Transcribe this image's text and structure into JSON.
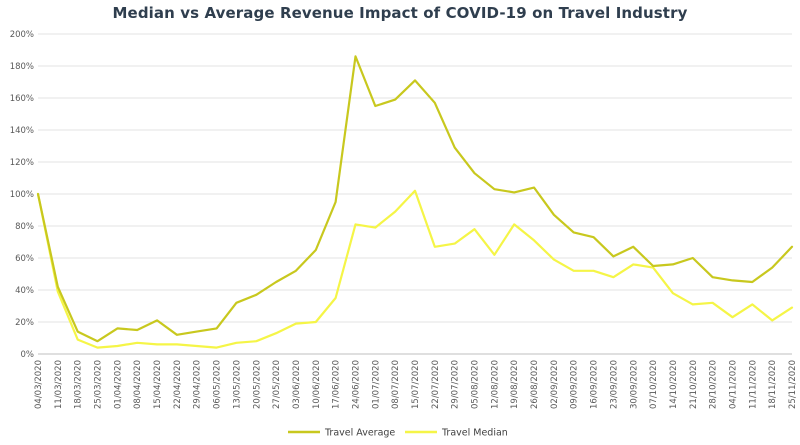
{
  "colors": {
    "travel_average": "#c8c81e",
    "travel_median": "#f5f547",
    "grid": "#e3e3e3",
    "axis": "#bfbfbf"
  },
  "chart_data": {
    "type": "line",
    "title": "Median vs Average Revenue Impact of COVID-19 on Travel Industry",
    "xlabel": "",
    "ylabel": "",
    "ylim": [
      0,
      200
    ],
    "y_ticks": [
      "0%",
      "20%",
      "40%",
      "60%",
      "80%",
      "100%",
      "120%",
      "140%",
      "160%",
      "180%",
      "200%"
    ],
    "grid": true,
    "legend_position": "bottom",
    "categories": [
      "04/03/2020",
      "11/03/2020",
      "18/03/2020",
      "25/03/2020",
      "01/04/2020",
      "08/04/2020",
      "15/04/2020",
      "22/04/2020",
      "29/04/2020",
      "06/05/2020",
      "13/05/2020",
      "20/05/2020",
      "27/05/2020",
      "03/06/2020",
      "10/06/2020",
      "17/06/2020",
      "24/06/2020",
      "01/07/2020",
      "08/07/2020",
      "15/07/2020",
      "22/07/2020",
      "29/07/2020",
      "05/08/2020",
      "12/08/2020",
      "19/08/2020",
      "26/08/2020",
      "02/09/2020",
      "09/09/2020",
      "16/09/2020",
      "23/09/2020",
      "30/09/2020",
      "07/10/2020",
      "14/10/2020",
      "21/10/2020",
      "28/10/2020",
      "04/11/2020",
      "11/11/2020",
      "18/11/2020",
      "25/11/2020"
    ],
    "series": [
      {
        "name": "Travel Average",
        "values": [
          100,
          42,
          14,
          8,
          16,
          15,
          21,
          12,
          14,
          16,
          32,
          37,
          45,
          52,
          65,
          95,
          186,
          155,
          159,
          171,
          157,
          129,
          113,
          103,
          101,
          104,
          87,
          76,
          73,
          61,
          67,
          55,
          56,
          60,
          48,
          46,
          45,
          54,
          67
        ]
      },
      {
        "name": "Travel Median",
        "values": [
          100,
          39,
          9,
          4,
          5,
          7,
          6,
          6,
          5,
          4,
          7,
          8,
          13,
          19,
          20,
          35,
          81,
          79,
          89,
          102,
          67,
          69,
          78,
          62,
          81,
          71,
          59,
          52,
          52,
          48,
          56,
          54,
          38,
          31,
          32,
          23,
          31,
          21,
          29
        ]
      }
    ]
  }
}
